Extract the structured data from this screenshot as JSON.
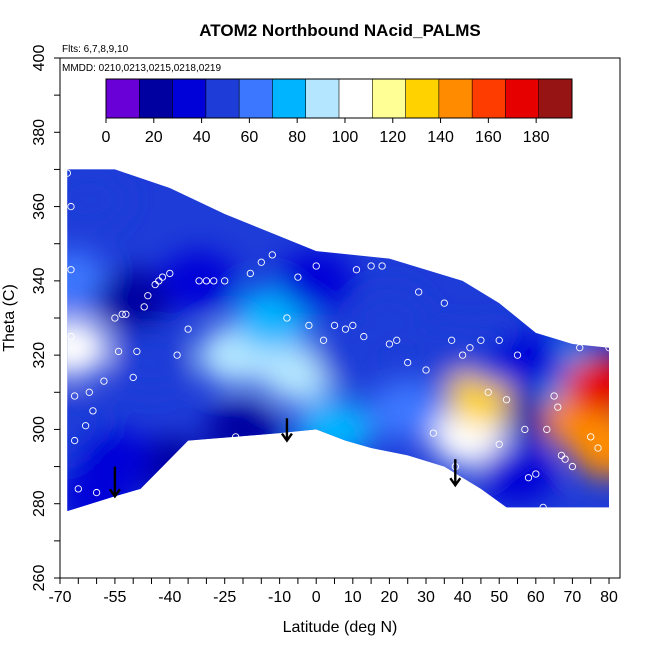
{
  "chart_data": {
    "type": "heatmap",
    "title": "ATOM2 Northbound NAcid_PALMS",
    "annotations": [
      "Flts: 6,7,8,9,10",
      "MMDD: 0210,0213,0215,0218,0219"
    ],
    "xlabel": "Latitude (deg N)",
    "ylabel": "Theta (C)",
    "xlim": [
      -70,
      83
    ],
    "ylim": [
      260,
      400
    ],
    "x_ticks": [
      -70,
      -55,
      -40,
      -25,
      -10,
      0,
      10,
      20,
      30,
      40,
      50,
      60,
      70,
      80
    ],
    "y_ticks": [
      260,
      280,
      300,
      320,
      340,
      360,
      380,
      400
    ],
    "colorbar": {
      "range": [
        0,
        195
      ],
      "ticks": [
        0,
        20,
        40,
        60,
        80,
        100,
        120,
        140,
        160,
        180
      ],
      "bins": [
        "#6a00d8",
        "#0000a0",
        "#0000d8",
        "#1e3cd8",
        "#3c78ff",
        "#00b4ff",
        "#b4e6ff",
        "#ffffff",
        "#ffff96",
        "#ffd200",
        "#ff8c00",
        "#ff3c00",
        "#e60000",
        "#961414"
      ]
    },
    "data_region": {
      "top_boundary": [
        [
          -68,
          370
        ],
        [
          -55,
          370
        ],
        [
          -40,
          365
        ],
        [
          -25,
          358
        ],
        [
          -10,
          352
        ],
        [
          0,
          348
        ],
        [
          20,
          346
        ],
        [
          40,
          340
        ],
        [
          50,
          334
        ],
        [
          60,
          326
        ],
        [
          70,
          323
        ],
        [
          80,
          322
        ]
      ],
      "bottom_boundary": [
        [
          -68,
          278
        ],
        [
          -55,
          282
        ],
        [
          -48,
          284
        ],
        [
          -35,
          297
        ],
        [
          -10,
          299
        ],
        [
          0,
          300
        ],
        [
          8,
          297
        ],
        [
          15,
          295
        ],
        [
          25,
          293
        ],
        [
          35,
          290
        ],
        [
          45,
          284
        ],
        [
          52,
          279
        ],
        [
          80,
          279
        ]
      ]
    },
    "field_samples": [
      {
        "lat": -67,
        "theta": 340,
        "value": 60
      },
      {
        "lat": -67,
        "theta": 322,
        "value": 110
      },
      {
        "lat": -67,
        "theta": 300,
        "value": 50
      },
      {
        "lat": -62,
        "theta": 362,
        "value": 45
      },
      {
        "lat": -60,
        "theta": 282,
        "value": 30
      },
      {
        "lat": -50,
        "theta": 335,
        "value": 15
      },
      {
        "lat": -45,
        "theta": 318,
        "value": 55
      },
      {
        "lat": -40,
        "theta": 290,
        "value": 20
      },
      {
        "lat": -32,
        "theta": 340,
        "value": 35
      },
      {
        "lat": -22,
        "theta": 320,
        "value": 95
      },
      {
        "lat": -20,
        "theta": 300,
        "value": 25
      },
      {
        "lat": -12,
        "theta": 330,
        "value": 75
      },
      {
        "lat": -5,
        "theta": 315,
        "value": 90
      },
      {
        "lat": 0,
        "theta": 340,
        "value": 40
      },
      {
        "lat": 10,
        "theta": 320,
        "value": 55
      },
      {
        "lat": 20,
        "theta": 330,
        "value": 45
      },
      {
        "lat": 25,
        "theta": 305,
        "value": 60
      },
      {
        "lat": 35,
        "theta": 320,
        "value": 55
      },
      {
        "lat": 42,
        "theta": 298,
        "value": 100
      },
      {
        "lat": 46,
        "theta": 309,
        "value": 130
      },
      {
        "lat": 50,
        "theta": 320,
        "value": 55
      },
      {
        "lat": 55,
        "theta": 288,
        "value": 35
      },
      {
        "lat": 62,
        "theta": 305,
        "value": 20
      },
      {
        "lat": 68,
        "theta": 315,
        "value": 80
      },
      {
        "lat": 73,
        "theta": 302,
        "value": 140
      },
      {
        "lat": 78,
        "theta": 312,
        "value": 175
      },
      {
        "lat": 80,
        "theta": 295,
        "value": 150
      },
      {
        "lat": 58,
        "theta": 318,
        "value": 35
      },
      {
        "lat": -55,
        "theta": 292,
        "value": 30
      },
      {
        "lat": 5,
        "theta": 300,
        "value": 75
      }
    ],
    "observation_points": [
      [
        -68,
        369
      ],
      [
        -67,
        360
      ],
      [
        -67,
        343
      ],
      [
        -67,
        325
      ],
      [
        -66,
        309
      ],
      [
        -66,
        297
      ],
      [
        -65,
        284
      ],
      [
        -63,
        301
      ],
      [
        -62,
        310
      ],
      [
        -61,
        305
      ],
      [
        -60,
        283
      ],
      [
        -58,
        313
      ],
      [
        -55,
        330
      ],
      [
        -54,
        321
      ],
      [
        -53,
        331
      ],
      [
        -52,
        331
      ],
      [
        -50,
        314
      ],
      [
        -49,
        321
      ],
      [
        -47,
        333
      ],
      [
        -46,
        336
      ],
      [
        -44,
        339
      ],
      [
        -43,
        340
      ],
      [
        -42,
        341
      ],
      [
        -40,
        342
      ],
      [
        -38,
        320
      ],
      [
        -35,
        327
      ],
      [
        -32,
        340
      ],
      [
        -30,
        340
      ],
      [
        -28,
        340
      ],
      [
        -25,
        340
      ],
      [
        -22,
        298
      ],
      [
        -18,
        342
      ],
      [
        -15,
        345
      ],
      [
        -12,
        347
      ],
      [
        -8,
        330
      ],
      [
        -5,
        341
      ],
      [
        -2,
        328
      ],
      [
        0,
        344
      ],
      [
        2,
        324
      ],
      [
        5,
        328
      ],
      [
        8,
        327
      ],
      [
        10,
        328
      ],
      [
        11,
        343
      ],
      [
        13,
        325
      ],
      [
        15,
        344
      ],
      [
        18,
        344
      ],
      [
        20,
        323
      ],
      [
        22,
        324
      ],
      [
        25,
        318
      ],
      [
        28,
        337
      ],
      [
        30,
        316
      ],
      [
        32,
        299
      ],
      [
        35,
        334
      ],
      [
        37,
        324
      ],
      [
        38,
        290
      ],
      [
        40,
        320
      ],
      [
        42,
        322
      ],
      [
        45,
        324
      ],
      [
        47,
        310
      ],
      [
        50,
        324
      ],
      [
        50,
        296
      ],
      [
        52,
        308
      ],
      [
        55,
        320
      ],
      [
        57,
        300
      ],
      [
        58,
        287
      ],
      [
        60,
        288
      ],
      [
        62,
        279
      ],
      [
        63,
        300
      ],
      [
        65,
        309
      ],
      [
        66,
        306
      ],
      [
        67,
        293
      ],
      [
        68,
        292
      ],
      [
        70,
        290
      ],
      [
        72,
        322
      ],
      [
        75,
        298
      ],
      [
        77,
        295
      ],
      [
        80,
        322
      ]
    ],
    "arrows": [
      {
        "lat": -55,
        "theta_from": 290,
        "theta_to": 282
      },
      {
        "lat": -8,
        "theta_from": 303,
        "theta_to": 297
      },
      {
        "lat": 38,
        "theta_from": 292,
        "theta_to": 285
      }
    ]
  }
}
